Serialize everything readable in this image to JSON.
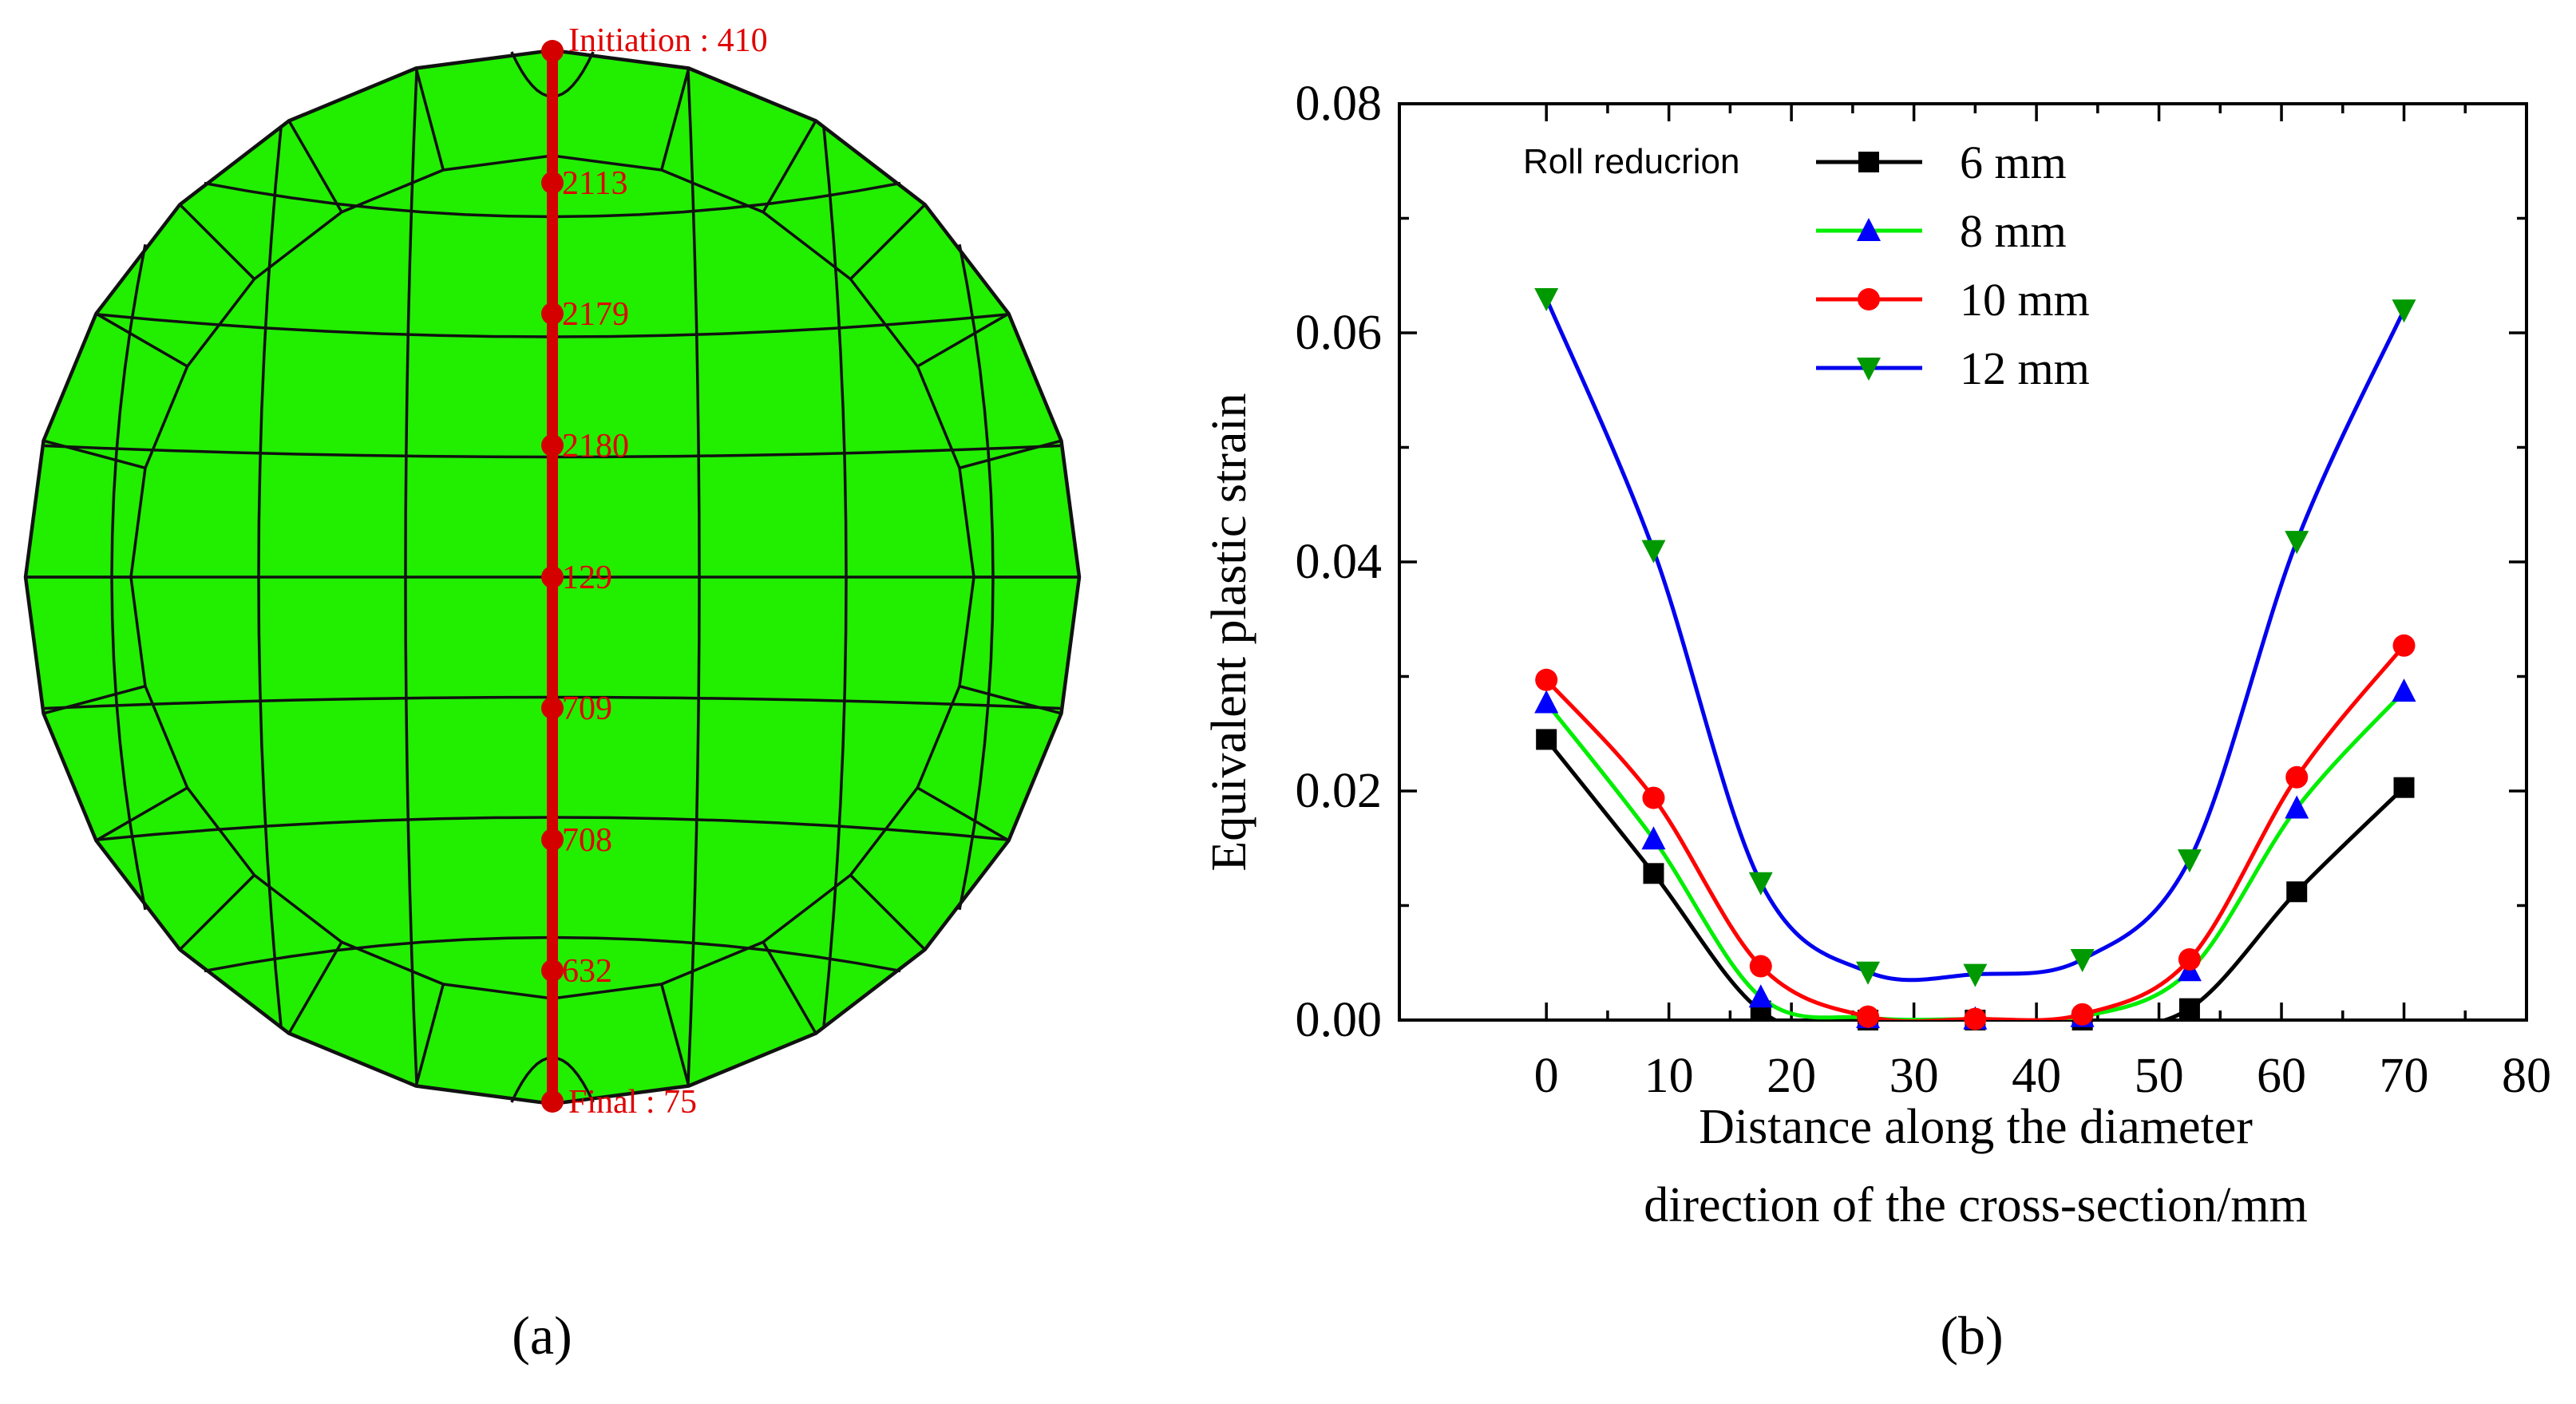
{
  "colors": {
    "mesh_fill": "#22ee00",
    "mesh_line": "#111111",
    "path_red": "#d40000",
    "label_red": "#e00000"
  },
  "panel_a": {
    "label": "(a)",
    "nodes": [
      {
        "id": "n0",
        "label": "Initiation : 410"
      },
      {
        "id": "n1",
        "label": "2113"
      },
      {
        "id": "n2",
        "label": "2179"
      },
      {
        "id": "n3",
        "label": "2180"
      },
      {
        "id": "n4",
        "label": "129"
      },
      {
        "id": "n5",
        "label": "709"
      },
      {
        "id": "n6",
        "label": "708"
      },
      {
        "id": "n7",
        "label": "632"
      },
      {
        "id": "n8",
        "label": "Final : 75"
      }
    ]
  },
  "panel_b": {
    "label": "(b)"
  },
  "chart_data": {
    "type": "line",
    "title": "",
    "xlabel_lines": [
      "Distance along the diameter",
      "direction of the cross-section/mm"
    ],
    "ylabel": "Equivalent plastic strain",
    "xlim": [
      -12,
      80
    ],
    "ylim": [
      0,
      0.08
    ],
    "x_ticks": [
      0,
      10,
      20,
      30,
      40,
      50,
      60,
      70,
      80
    ],
    "y_ticks": [
      0.0,
      0.02,
      0.04,
      0.06,
      0.08
    ],
    "x_tick_labels": [
      "0",
      "10",
      "20",
      "30",
      "40",
      "50",
      "60",
      "70",
      "80"
    ],
    "y_tick_labels": [
      "0.00",
      "0.02",
      "0.04",
      "0.06",
      "0.08"
    ],
    "legend_title": "Roll reducrion",
    "legend_position": "top-center",
    "x": [
      0,
      8.75,
      17.5,
      26.25,
      35,
      43.75,
      52.5,
      61.25,
      70
    ],
    "series": [
      {
        "name": "6 mm",
        "color": "#000000",
        "marker": "square",
        "values": [
          0.0245,
          0.0128,
          0.0008,
          -0.0015,
          -0.0013,
          -0.0008,
          0.001,
          0.0112,
          0.0203
        ]
      },
      {
        "name": "8 mm",
        "color": "#0000ff",
        "line_color": "#00ee00",
        "marker": "triangle-up",
        "values": [
          0.0277,
          0.0158,
          0.002,
          0.0002,
          0.0001,
          0.0003,
          0.0043,
          0.0185,
          0.0287
        ]
      },
      {
        "name": "10 mm",
        "color": "#ff0000",
        "marker": "circle",
        "values": [
          0.0297,
          0.0194,
          0.0047,
          0.0003,
          0.0001,
          0.0005,
          0.0053,
          0.0212,
          0.0327
        ]
      },
      {
        "name": "12 mm",
        "color": "#009a00",
        "line_color": "#0000ee",
        "marker": "triangle-down",
        "values": [
          0.063,
          0.041,
          0.012,
          0.0042,
          0.004,
          0.0053,
          0.014,
          0.0418,
          0.062
        ]
      }
    ]
  }
}
